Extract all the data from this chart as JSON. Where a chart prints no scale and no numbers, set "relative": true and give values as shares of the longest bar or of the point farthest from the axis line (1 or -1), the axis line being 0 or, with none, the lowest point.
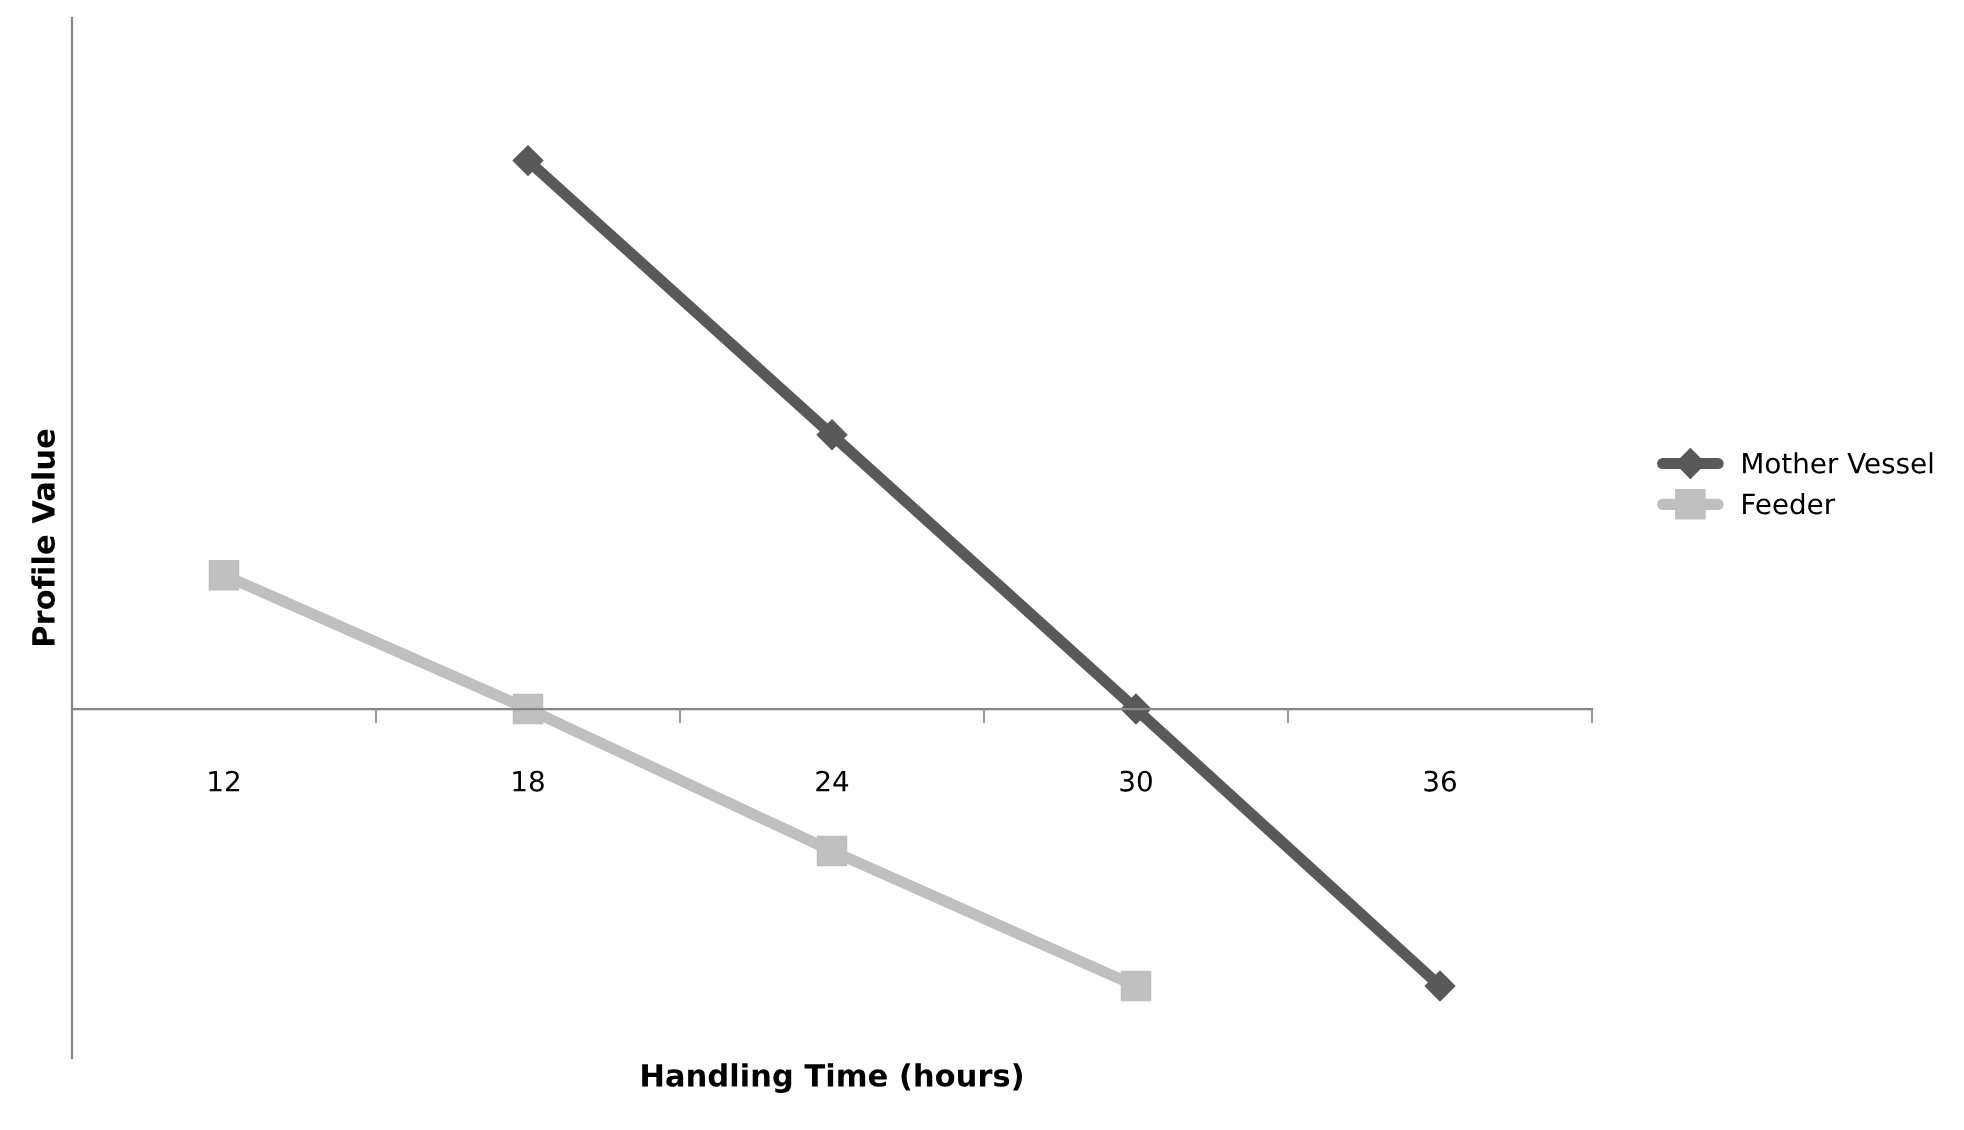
{
  "chart_data": {
    "type": "line",
    "relative": true,
    "xlabel": "Handling Time (hours)",
    "ylabel": "Profile Value",
    "categories": [
      "12",
      "18",
      "24",
      "30",
      "36"
    ],
    "series": [
      {
        "name": "Mother Vessel",
        "color": "#595959",
        "marker": "diamond",
        "values": [
          null,
          1,
          0.5,
          0,
          -0.505
        ]
      },
      {
        "name": "Feeder",
        "color": "#bfbfbf",
        "marker": "square",
        "values": [
          0.244,
          0,
          -0.259,
          -0.505,
          null
        ]
      }
    ],
    "legend": "right",
    "grid": false,
    "line_style": "solid"
  }
}
